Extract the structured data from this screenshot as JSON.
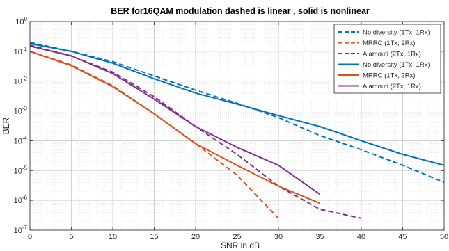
{
  "chart_data": {
    "type": "line",
    "title": "BER for16QAM modulation dashed is linear , solid is nonlinear",
    "xlabel": "SNR in dB",
    "ylabel": "BER",
    "xlim": [
      0,
      50
    ],
    "ylim": [
      1e-07,
      1
    ],
    "yscale": "log",
    "grid": true,
    "legend_position": "top-right",
    "x_ticks": [
      0,
      5,
      10,
      15,
      20,
      25,
      30,
      35,
      40,
      45,
      50
    ],
    "y_ticks": [
      {
        "value": 1e-07,
        "base": "10",
        "exp": "-7"
      },
      {
        "value": 1e-06,
        "base": "10",
        "exp": "-6"
      },
      {
        "value": 1e-05,
        "base": "10",
        "exp": "-5"
      },
      {
        "value": 0.0001,
        "base": "10",
        "exp": "-4"
      },
      {
        "value": 0.001,
        "base": "10",
        "exp": "-3"
      },
      {
        "value": 0.01,
        "base": "10",
        "exp": "-2"
      },
      {
        "value": 0.1,
        "base": "10",
        "exp": "-1"
      },
      {
        "value": 1,
        "base": "10",
        "exp": "0"
      }
    ],
    "series": [
      {
        "name": "No diversity (1Tx, 1Rx)",
        "style": "dashed",
        "color": "#0072BD",
        "x": [
          0,
          5,
          10,
          15,
          20,
          25,
          30,
          35,
          40,
          45,
          50
        ],
        "y": [
          0.2,
          0.1,
          0.045,
          0.015,
          0.005,
          0.0018,
          0.0006,
          0.00015,
          5e-05,
          1.5e-05,
          4e-06
        ]
      },
      {
        "name": "MRRC (1Tx, 2Rx)",
        "style": "dashed",
        "color": "#D95319",
        "x": [
          0,
          5,
          10,
          15,
          20,
          25,
          30
        ],
        "y": [
          0.1,
          0.035,
          0.007,
          0.0008,
          8e-05,
          7e-06,
          2.5e-07
        ]
      },
      {
        "name": "Alamouti (2Tx, 1Rx)",
        "style": "dashed",
        "color": "#7E2F8E",
        "x": [
          0,
          5,
          10,
          15,
          20,
          25,
          30,
          35,
          40
        ],
        "y": [
          0.16,
          0.07,
          0.02,
          0.003,
          0.0003,
          3.5e-05,
          3e-06,
          5e-07,
          2.5e-07
        ]
      },
      {
        "name": "No diversity (1Tx, 1Rx)",
        "style": "solid",
        "color": "#0072BD",
        "x": [
          0,
          5,
          10,
          15,
          20,
          25,
          30,
          35,
          40,
          45,
          50
        ],
        "y": [
          0.18,
          0.1,
          0.04,
          0.012,
          0.004,
          0.0017,
          0.0007,
          0.0003,
          0.0001,
          3.5e-05,
          1.5e-05
        ]
      },
      {
        "name": "MRRC (1Tx, 2Rx)",
        "style": "solid",
        "color": "#D95319",
        "x": [
          0,
          5,
          10,
          15,
          20,
          25,
          30,
          35
        ],
        "y": [
          0.1,
          0.033,
          0.0065,
          0.0008,
          8e-05,
          1.5e-05,
          3e-06,
          8e-07
        ]
      },
      {
        "name": "Alamouti (2Tx, 1Rx)",
        "style": "solid",
        "color": "#7E2F8E",
        "x": [
          0,
          5,
          10,
          15,
          20,
          25,
          30,
          35
        ],
        "y": [
          0.15,
          0.07,
          0.018,
          0.0025,
          0.0003,
          6e-05,
          1.5e-05,
          1.6e-06
        ]
      }
    ]
  }
}
